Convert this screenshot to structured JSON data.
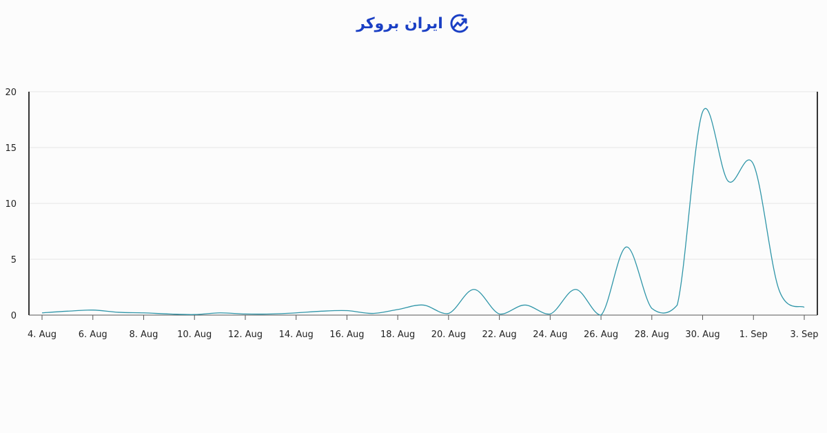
{
  "brand": {
    "name": "ایران بروکر",
    "color": "#1a3fc4",
    "icon": "growth-chart-icon"
  },
  "chart_data": {
    "type": "line",
    "title": "",
    "xlabel": "",
    "ylabel": "",
    "x": [
      "4. Aug",
      "5. Aug",
      "6. Aug",
      "7. Aug",
      "8. Aug",
      "9. Aug",
      "10. Aug",
      "11. Aug",
      "12. Aug",
      "13. Aug",
      "14. Aug",
      "15. Aug",
      "16. Aug",
      "17. Aug",
      "18. Aug",
      "19. Aug",
      "20. Aug",
      "21. Aug",
      "22. Aug",
      "23. Aug",
      "24. Aug",
      "25. Aug",
      "26. Aug",
      "27. Aug",
      "28. Aug",
      "29. Aug",
      "30. Aug",
      "31. Aug",
      "1. Sep",
      "2. Sep",
      "3. Sep"
    ],
    "series": [
      {
        "values": [
          0.2,
          0.35,
          0.45,
          0.25,
          0.2,
          0.1,
          0.05,
          0.2,
          0.1,
          0.1,
          0.2,
          0.35,
          0.4,
          0.15,
          0.5,
          0.9,
          0.15,
          2.3,
          0.1,
          0.9,
          0.1,
          2.3,
          0.0,
          6.1,
          0.6,
          0.9,
          18.2,
          12.0,
          13.5,
          2.3,
          0.7
        ],
        "color": "#2e95a8"
      }
    ],
    "x_ticks": [
      "4. Aug",
      "6. Aug",
      "8. Aug",
      "10. Aug",
      "12. Aug",
      "14. Aug",
      "16. Aug",
      "18. Aug",
      "20. Aug",
      "22. Aug",
      "24. Aug",
      "26. Aug",
      "28. Aug",
      "30. Aug",
      "1. Sep",
      "3. Sep"
    ],
    "y_ticks": [
      "0",
      "5",
      "10",
      "15",
      "20"
    ],
    "ylim": [
      0,
      20
    ],
    "grid": true,
    "legend": "none"
  }
}
